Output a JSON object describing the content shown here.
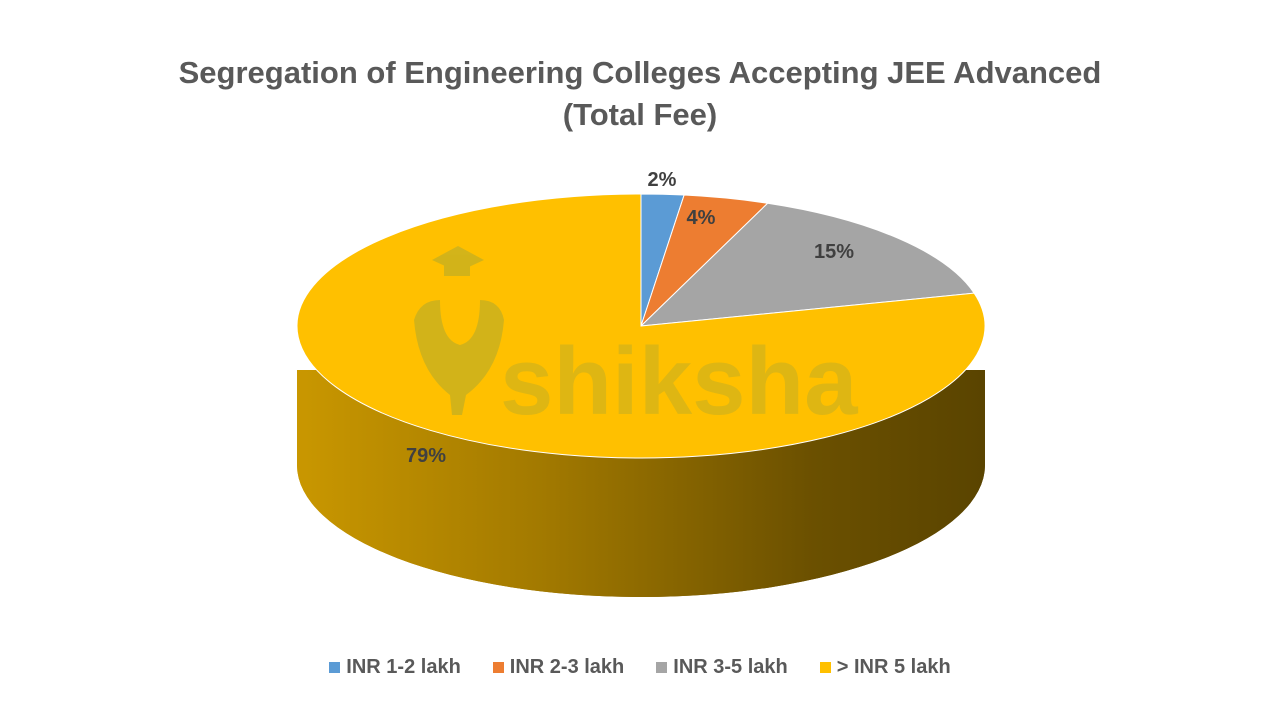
{
  "chart_data": {
    "type": "pie",
    "title": "Segregation of Engineering Colleges Accepting JEE Advanced (Total Fee)",
    "title_line1": "Segregation of Engineering Colleges Accepting JEE Advanced",
    "title_line2": "(Total Fee)",
    "categories": [
      "INR 1-2 lakh",
      "INR 2-3 lakh",
      "INR 3-5 lakh",
      "> INR 5 lakh"
    ],
    "values": [
      2,
      4,
      15,
      79
    ],
    "labels": [
      "2%",
      "4%",
      "15%",
      "79%"
    ],
    "colors": [
      "#5b9bd5",
      "#ed7d31",
      "#a5a5a5",
      "#ffc000"
    ],
    "legend_position": "bottom",
    "style": "3d-pie"
  },
  "watermark": "shiksha",
  "legend": [
    {
      "label": "INR 1-2 lakh",
      "color": "#5b9bd5"
    },
    {
      "label": "INR 2-3 lakh",
      "color": "#ed7d31"
    },
    {
      "label": "INR 3-5 lakh",
      "color": "#a5a5a5"
    },
    {
      "label": "> INR 5 lakh",
      "color": "#ffc000"
    }
  ]
}
